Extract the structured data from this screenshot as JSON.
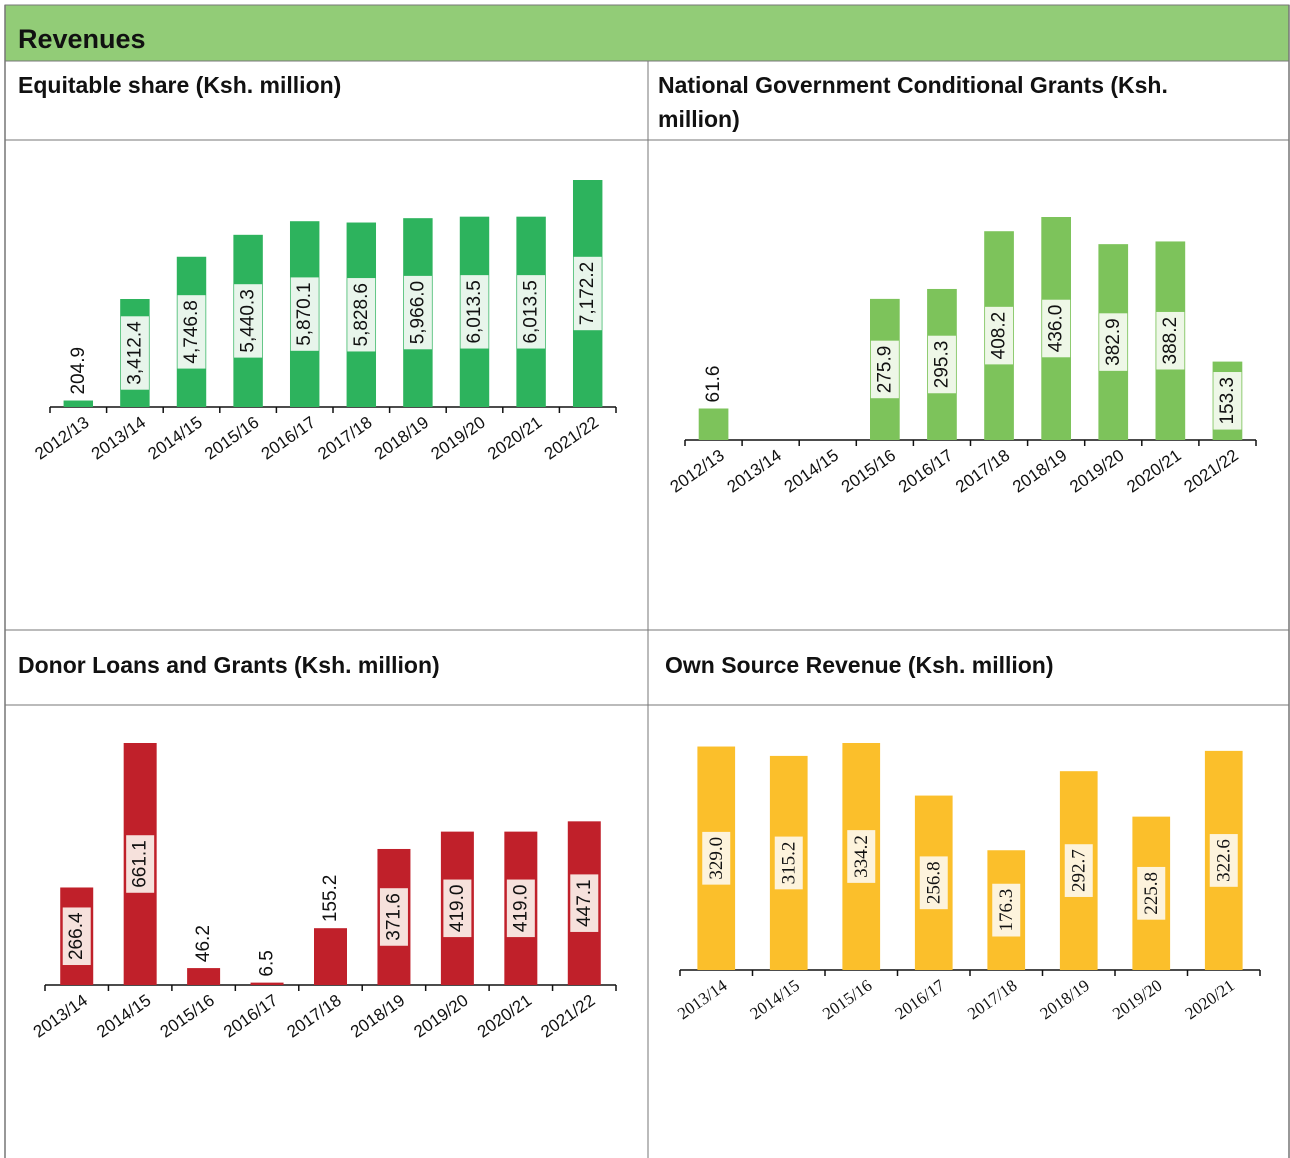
{
  "header": {
    "title": "Revenues"
  },
  "chart_data": [
    {
      "type": "bar",
      "title": "Equitable share (Ksh. million)",
      "color": "#2db35d",
      "label_bg": "#e8f5eb",
      "categories": [
        "2012/13",
        "2013/14",
        "2014/15",
        "2015/16",
        "2016/17",
        "2017/18",
        "2018/19",
        "2019/20",
        "2020/21",
        "2021/22"
      ],
      "values": [
        204.9,
        3412.4,
        4746.8,
        5440.3,
        5870.1,
        5828.6,
        5966.0,
        6013.5,
        6013.5,
        7172.2
      ],
      "value_labels": [
        "204.9",
        "3,412.4",
        "4,746.8",
        "5,440.3",
        "5,870.1",
        "5,828.6",
        "5,966.0",
        "6,013.5",
        "6,013.5",
        "7,172.2"
      ]
    },
    {
      "type": "bar",
      "title": "National Government Conditional Grants (Ksh. million)",
      "color": "#7dc35b",
      "label_bg": "#eef7e7",
      "categories": [
        "2012/13",
        "2013/14",
        "2014/15",
        "2015/16",
        "2016/17",
        "2017/18",
        "2018/19",
        "2019/20",
        "2020/21",
        "2021/22"
      ],
      "values": [
        61.6,
        null,
        null,
        275.9,
        295.3,
        408.2,
        436.0,
        382.9,
        388.2,
        153.3
      ],
      "value_labels": [
        "61.6",
        null,
        null,
        "275.9",
        "295.3",
        "408.2",
        "436.0",
        "382.9",
        "388.2",
        "153.3"
      ]
    },
    {
      "type": "bar",
      "title": "Donor Loans and Grants (Ksh. million)",
      "color": "#c0202a",
      "label_bg": "#f6e1dc",
      "categories": [
        "2013/14",
        "2014/15",
        "2015/16",
        "2016/17",
        "2017/18",
        "2018/19",
        "2019/20",
        "2020/21",
        "2021/22"
      ],
      "values": [
        266.4,
        661.1,
        46.2,
        6.5,
        155.2,
        371.6,
        419.0,
        419.0,
        447.1
      ],
      "value_labels": [
        "266.4",
        "661.1",
        "46.2",
        "6.5",
        "155.2",
        "371.6",
        "419.0",
        "419.0",
        "447.1"
      ]
    },
    {
      "type": "bar",
      "title": "Own Source Revenue (Ksh. million)",
      "color": "#fbbf2b",
      "label_bg": "#fdf3dc",
      "categories": [
        "2013/14",
        "2014/15",
        "2015/16",
        "2016/17",
        "2017/18",
        "2018/19",
        "2019/20",
        "2020/21"
      ],
      "values": [
        329.0,
        315.2,
        334.2,
        256.8,
        176.3,
        292.7,
        225.8,
        322.6
      ],
      "value_labels": [
        "329.0",
        "315.2",
        "334.2",
        "256.8",
        "176.3",
        "292.7",
        "225.8",
        "322.6"
      ]
    }
  ]
}
